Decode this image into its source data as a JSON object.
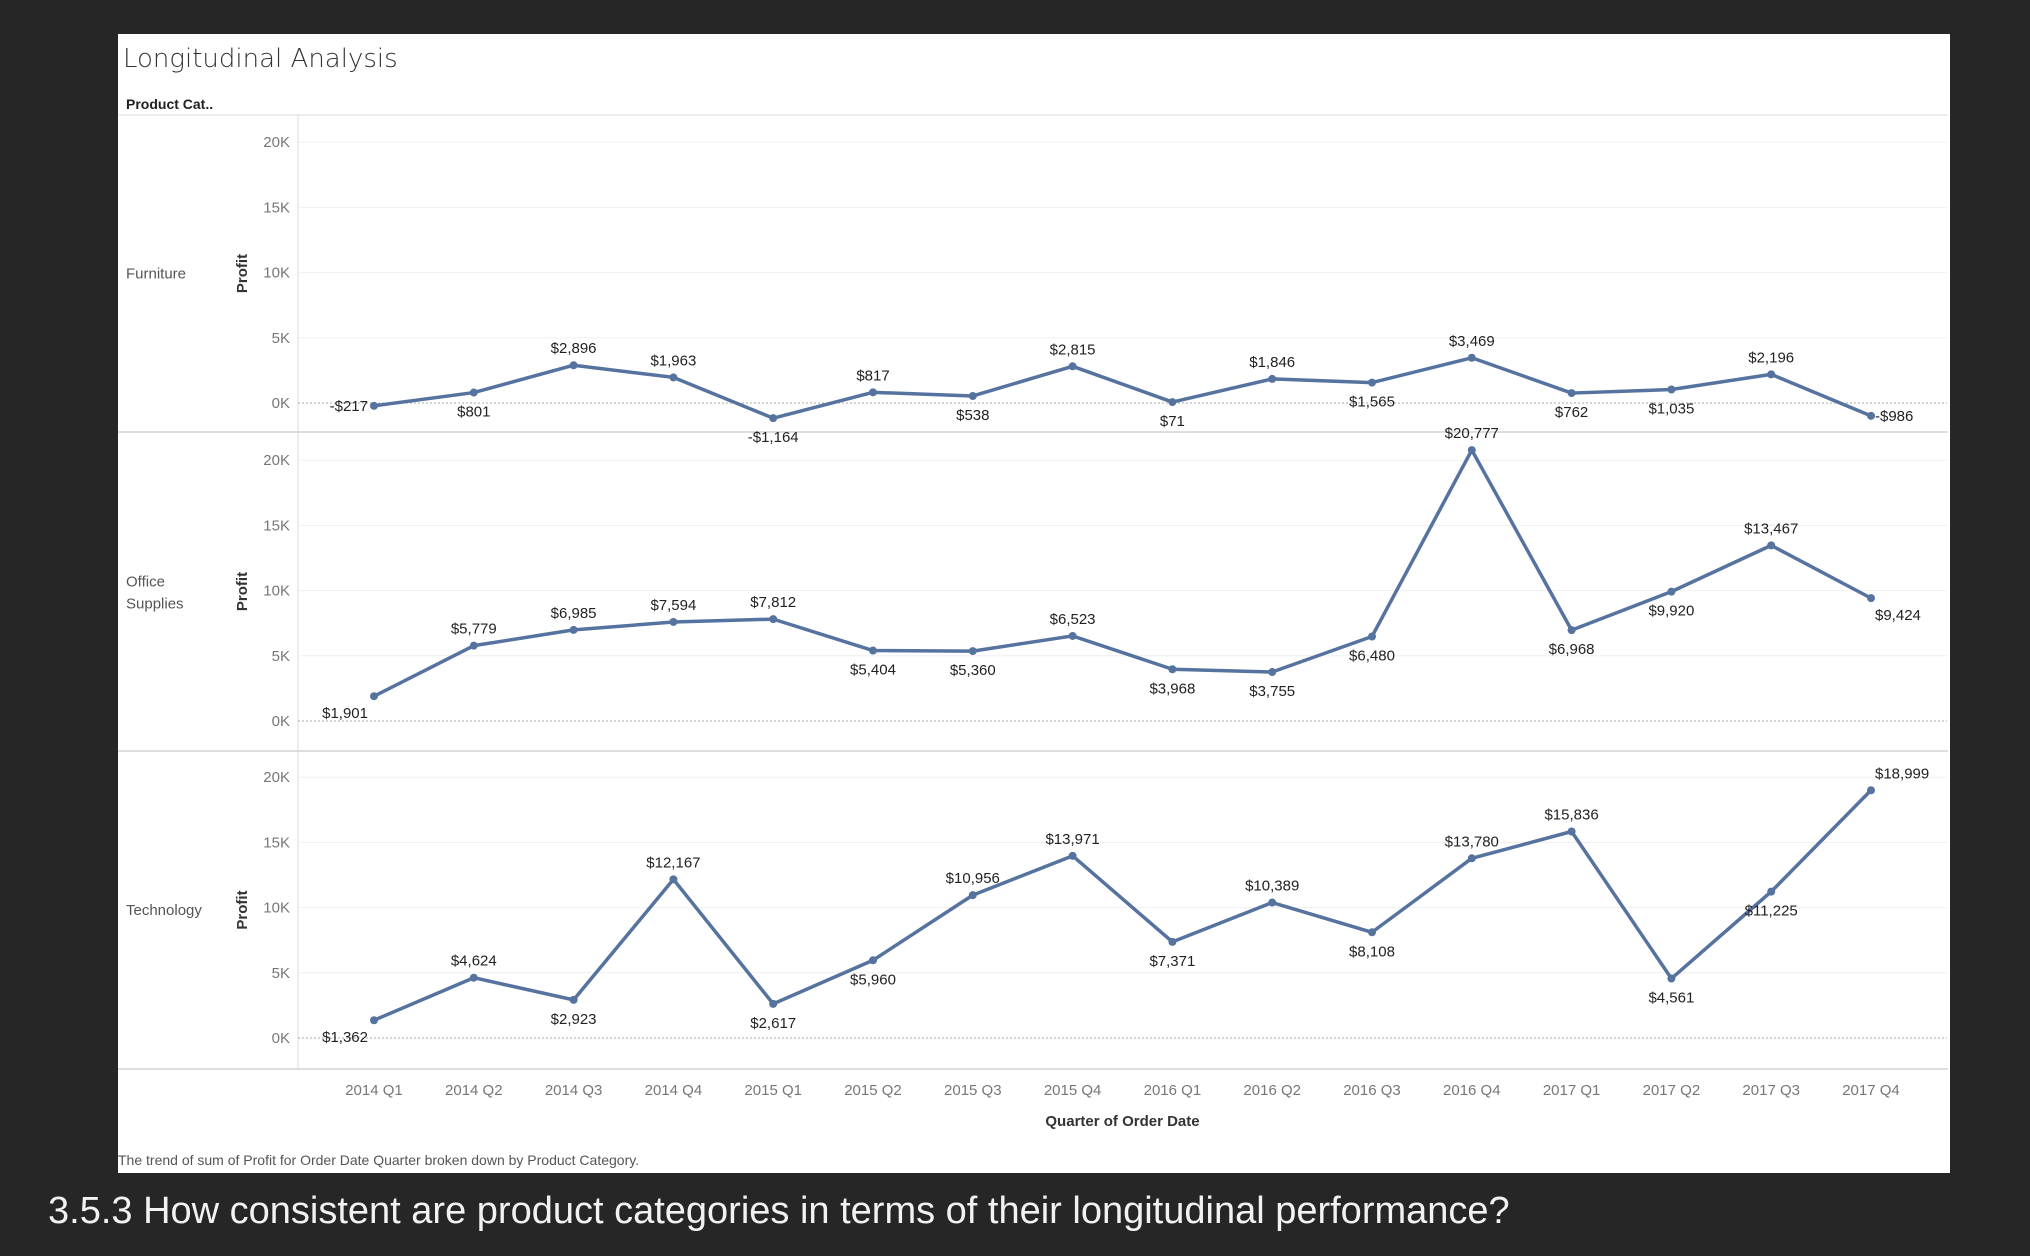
{
  "title": "Longitudinal Analysis",
  "row_header": "Product Cat..",
  "caption": "The trend of sum of Profit for Order Date Quarter broken down by Product Category.",
  "question": "3.5.3 How consistent are product categories in terms of their longitudinal performance?",
  "colors": {
    "line": "#56739f",
    "background": "#262626"
  },
  "chart_data": {
    "type": "line",
    "xlabel": "Quarter of Order Date",
    "ylabel": "Profit",
    "ylim": [
      0,
      20000
    ],
    "yticks": [
      "0K",
      "5K",
      "10K",
      "15K",
      "20K"
    ],
    "grid": true,
    "categories": [
      "2014 Q1",
      "2014 Q2",
      "2014 Q3",
      "2014 Q4",
      "2015 Q1",
      "2015 Q2",
      "2015 Q3",
      "2015 Q4",
      "2016 Q1",
      "2016 Q2",
      "2016 Q3",
      "2016 Q4",
      "2017 Q1",
      "2017 Q2",
      "2017 Q3",
      "2017 Q4"
    ],
    "series": [
      {
        "name": "Furniture",
        "values": [
          -217,
          801,
          2896,
          1963,
          -1164,
          817,
          538,
          2815,
          71,
          1846,
          1565,
          3469,
          762,
          1035,
          2196,
          -986
        ],
        "labels": [
          "-$217",
          "$801",
          "$2,896",
          "$1,963",
          "-$1,164",
          "$817",
          "$538",
          "$2,815",
          "$71",
          "$1,846",
          "$1,565",
          "$3,469",
          "$762",
          "$1,035",
          "$2,196",
          "-$986"
        ]
      },
      {
        "name": "Office Supplies",
        "values": [
          1901,
          5779,
          6985,
          7594,
          7812,
          5404,
          5360,
          6523,
          3968,
          3755,
          6480,
          20777,
          6968,
          9920,
          13467,
          9424
        ],
        "labels": [
          "$1,901",
          "$5,779",
          "$6,985",
          "$7,594",
          "$7,812",
          "$5,404",
          "$5,360",
          "$6,523",
          "$3,968",
          "$3,755",
          "$6,480",
          "$20,777",
          "$6,968",
          "$9,920",
          "$13,467",
          "$9,424"
        ]
      },
      {
        "name": "Technology",
        "values": [
          1362,
          4624,
          2923,
          12167,
          2617,
          5960,
          10956,
          13971,
          7371,
          10389,
          8108,
          13780,
          15836,
          4561,
          11225,
          18999
        ],
        "labels": [
          "$1,362",
          "$4,624",
          "$2,923",
          "$12,167",
          "$2,617",
          "$5,960",
          "$10,956",
          "$13,971",
          "$7,371",
          "$10,389",
          "$8,108",
          "$13,780",
          "$15,836",
          "$4,561",
          "$11,225",
          "$18,999"
        ]
      }
    ]
  }
}
